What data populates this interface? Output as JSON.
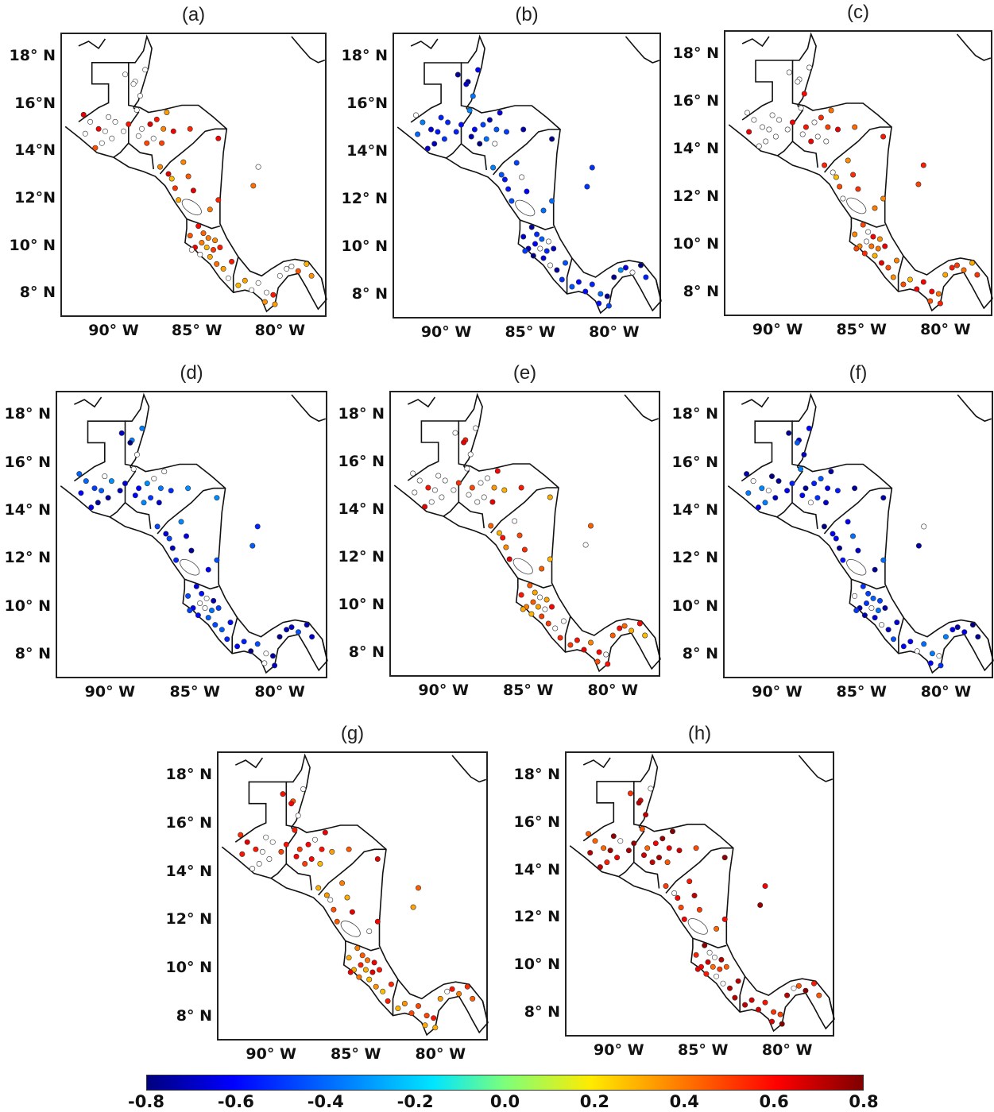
{
  "lat_labels": [
    "18° N",
    "16°N",
    "14°N",
    "12°N",
    "10° N",
    "8° N"
  ],
  "lat_labels_alt": [
    "18° N",
    "16° N",
    "14° N",
    "12° N",
    "10° N",
    "8° N"
  ],
  "lon_labels": [
    "90° W",
    "85° W",
    "80° W"
  ],
  "colorbar": {
    "ticks": [
      "-0.8",
      "-0.6",
      "-0.4",
      "-0.2",
      "0.0",
      "0.2",
      "0.4",
      "0.6",
      "0.8"
    ],
    "min": -0.8,
    "max": 0.8
  },
  "panels": [
    {
      "letter": "(a)",
      "lat_labels": [
        "18° N",
        "16°N",
        "14°N",
        "12°N",
        "10° N",
        "8° N"
      ],
      "pattern": "weak_positive"
    },
    {
      "letter": "(b)",
      "lat_labels": [
        "18° N",
        "16°N",
        "14°N",
        "12° N",
        "10° N",
        "8° N"
      ],
      "pattern": "negative"
    },
    {
      "letter": "(c)",
      "lat_labels": [
        "18° N",
        "16° N",
        "14° N",
        "12° N",
        "10° N",
        "8° N"
      ],
      "pattern": "weak_positive"
    },
    {
      "letter": "(d)",
      "lat_labels": [
        "18° N",
        "16° N",
        "14° N",
        "12° N",
        "10° N",
        "8° N"
      ],
      "pattern": "negative"
    },
    {
      "letter": "(e)",
      "lat_labels": [
        "18° N",
        "16° N",
        "14° N",
        "12° N",
        "10° N",
        "8° N"
      ],
      "pattern": "weak_positive"
    },
    {
      "letter": "(f)",
      "lat_labels": [
        "18° N",
        "16° N",
        "14° N",
        "12° N",
        "10° N",
        "8° N"
      ],
      "pattern": "negative"
    },
    {
      "letter": "(g)",
      "lat_labels": [
        "18° N",
        "16° N",
        "14° N",
        "12° N",
        "10° N",
        "8° N"
      ],
      "pattern": "weak_positive"
    },
    {
      "letter": "(h)",
      "lat_labels": [
        "18° N",
        "16° N",
        "14° N",
        "12° N",
        "10° N",
        "8° N"
      ],
      "pattern": "strong_positive"
    }
  ],
  "stations": [
    [
      -91.5,
      15.3
    ],
    [
      -91.0,
      15.0
    ],
    [
      -90.6,
      14.9
    ],
    [
      -90.2,
      14.6
    ],
    [
      -91.8,
      14.8
    ],
    [
      -90.8,
      14.4
    ],
    [
      -91.2,
      14.2
    ],
    [
      -90.0,
      15.3
    ],
    [
      -89.5,
      14.9
    ],
    [
      -90.4,
      15.5
    ],
    [
      -91.9,
      15.6
    ],
    [
      -89.2,
      15.2
    ],
    [
      -88.4,
      15.0
    ],
    [
      -87.9,
      15.2
    ],
    [
      -87.5,
      15.4
    ],
    [
      -87.1,
      15.0
    ],
    [
      -86.5,
      14.9
    ],
    [
      -87.7,
      14.6
    ],
    [
      -88.1,
      14.4
    ],
    [
      -86.9,
      15.7
    ],
    [
      -85.5,
      15.0
    ],
    [
      -88.6,
      14.7
    ],
    [
      -87.2,
      14.4
    ],
    [
      -88.2,
      17.5
    ],
    [
      -88.8,
      17.0
    ],
    [
      -88.5,
      16.4
    ],
    [
      -88.9,
      16.9
    ],
    [
      -88.7,
      15.8
    ],
    [
      -89.4,
      17.3
    ],
    [
      -87.3,
      13.4
    ],
    [
      -86.8,
      13.1
    ],
    [
      -86.4,
      12.5
    ],
    [
      -86.2,
      12.0
    ],
    [
      -85.9,
      13.6
    ],
    [
      -86.6,
      12.9
    ],
    [
      -85.6,
      13.0
    ],
    [
      -85.3,
      12.4
    ],
    [
      -83.8,
      14.6
    ],
    [
      -84.3,
      11.6
    ],
    [
      -83.8,
      12.0
    ],
    [
      -85.5,
      10.5
    ],
    [
      -85.2,
      10.0
    ],
    [
      -84.8,
      10.2
    ],
    [
      -84.5,
      10.0
    ],
    [
      -84.1,
      9.9
    ],
    [
      -83.7,
      10.0
    ],
    [
      -84.3,
      9.6
    ],
    [
      -83.9,
      9.3
    ],
    [
      -85.4,
      9.9
    ],
    [
      -84.9,
      9.7
    ],
    [
      -83.5,
      9.1
    ],
    [
      -83.2,
      8.7
    ],
    [
      -83.0,
      9.4
    ],
    [
      -84.7,
      10.6
    ],
    [
      -84.0,
      10.3
    ],
    [
      -85.0,
      10.9
    ],
    [
      -84.4,
      10.4
    ],
    [
      -82.6,
      8.4
    ],
    [
      -82.2,
      8.6
    ],
    [
      -81.8,
      8.2
    ],
    [
      -81.4,
      8.5
    ],
    [
      -80.9,
      8.1
    ],
    [
      -80.5,
      8.0
    ],
    [
      -80.1,
      8.8
    ],
    [
      -79.7,
      9.1
    ],
    [
      -79.4,
      9.2
    ],
    [
      -79.0,
      9.0
    ],
    [
      -78.5,
      9.3
    ],
    [
      -78.2,
      8.8
    ],
    [
      -80.4,
      7.6
    ],
    [
      -81.0,
      7.7
    ],
    [
      -81.7,
      12.6
    ],
    [
      -81.4,
      13.4
    ]
  ]
}
